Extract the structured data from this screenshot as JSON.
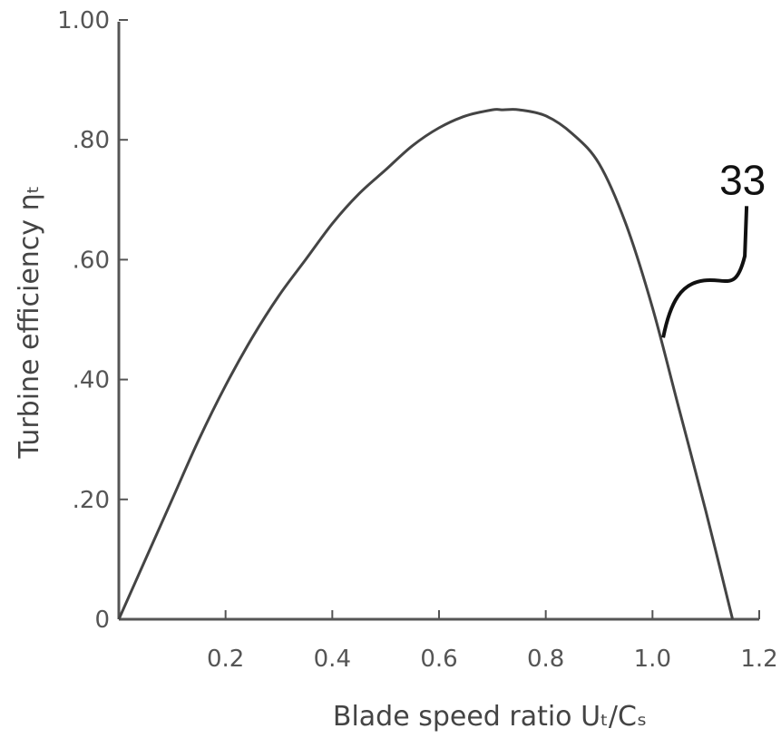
{
  "chart_data": {
    "type": "line",
    "title": "",
    "xlabel": "Blade speed ratio Uₜ/Cₛ",
    "ylabel": "Turbine efficiency ηₜ",
    "xlim": [
      0,
      1.2
    ],
    "ylim": [
      0,
      1.0
    ],
    "grid": false,
    "x_ticks": [
      {
        "value": 0.2,
        "label": "0.2"
      },
      {
        "value": 0.4,
        "label": "0.4"
      },
      {
        "value": 0.6,
        "label": "0.6"
      },
      {
        "value": 0.8,
        "label": "0.8"
      },
      {
        "value": 1.0,
        "label": "1.0"
      },
      {
        "value": 1.2,
        "label": "1.2"
      }
    ],
    "y_ticks": [
      {
        "value": 0,
        "label": "0"
      },
      {
        "value": 0.2,
        "label": ".20"
      },
      {
        "value": 0.4,
        "label": ".40"
      },
      {
        "value": 0.6,
        "label": ".60"
      },
      {
        "value": 0.8,
        "label": ".80"
      },
      {
        "value": 1.0,
        "label": "1.00"
      }
    ],
    "series": [
      {
        "x": [
          0,
          0.05,
          0.1,
          0.15,
          0.2,
          0.25,
          0.3,
          0.35,
          0.4,
          0.45,
          0.5,
          0.55,
          0.6,
          0.65,
          0.7,
          0.72,
          0.75,
          0.8,
          0.85,
          0.9,
          0.95,
          1.0,
          1.05,
          1.1,
          1.15
        ],
        "y": [
          0,
          0.1,
          0.2,
          0.3,
          0.39,
          0.47,
          0.54,
          0.6,
          0.66,
          0.71,
          0.75,
          0.79,
          0.82,
          0.84,
          0.85,
          0.85,
          0.85,
          0.84,
          0.81,
          0.76,
          0.66,
          0.52,
          0.35,
          0.18,
          0.0
        ]
      }
    ],
    "annotations": [
      {
        "text": "33",
        "x": 1.02,
        "y": 0.47
      }
    ]
  }
}
